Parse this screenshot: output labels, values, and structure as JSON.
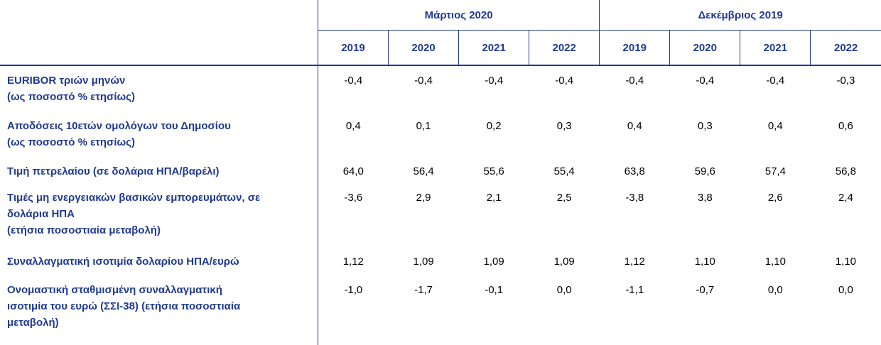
{
  "header": {
    "groups": [
      {
        "label": "Μάρτιος 2020"
      },
      {
        "label": "Δεκέμβριος 2019"
      }
    ],
    "years": [
      "2019",
      "2020",
      "2021",
      "2022",
      "2019",
      "2020",
      "2021",
      "2022"
    ]
  },
  "rows": [
    {
      "label_lines": [
        "EURIBOR τριών μηνών",
        "(ως ποσοστό % ετησίως)"
      ],
      "values": [
        "-0,4",
        "-0,4",
        "-0,4",
        "-0,4",
        "-0,4",
        "-0,4",
        "-0,4",
        "-0,3"
      ]
    },
    {
      "label_lines": [
        "Αποδόσεις 10ετών ομολόγων του Δημοσίου",
        "(ως ποσοστό % ετησίως)"
      ],
      "values": [
        "0,4",
        "0,1",
        "0,2",
        "0,3",
        "0,4",
        "0,3",
        "0,4",
        "0,6"
      ]
    },
    {
      "label_lines": [
        "Τιμή πετρελαίου (σε δολάρια ΗΠΑ/βαρέλι)"
      ],
      "values": [
        "64,0",
        "56,4",
        "55,6",
        "55,4",
        "63,8",
        "59,6",
        "57,4",
        "56,8"
      ]
    },
    {
      "label_lines": [
        "Τιμές μη ενεργειακών βασικών εμπορευμάτων, σε",
        "δολάρια ΗΠΑ",
        "(ετήσια ποσοστιαία μεταβολή)"
      ],
      "values": [
        "-3,6",
        "2,9",
        "2,1",
        "2,5",
        "-3,8",
        "3,8",
        "2,6",
        "2,4"
      ]
    },
    {
      "label_lines": [
        "Συναλλαγματική ισοτιμία δολαρίου ΗΠΑ/ευρώ"
      ],
      "values": [
        "1,12",
        "1,09",
        "1,09",
        "1,09",
        "1,12",
        "1,10",
        "1,10",
        "1,10"
      ]
    },
    {
      "label_lines": [
        "Ονομαστική σταθμισμένη συναλλαγματική",
        "ισοτιμία του ευρώ (ΣΣΙ-38) (ετήσια ποσοστιαία",
        "μεταβολή)"
      ],
      "values": [
        "-1,0",
        "-1,7",
        "-0,1",
        "0,0",
        "-1,1",
        "-0,7",
        "0,0",
        "0,0"
      ]
    }
  ]
}
